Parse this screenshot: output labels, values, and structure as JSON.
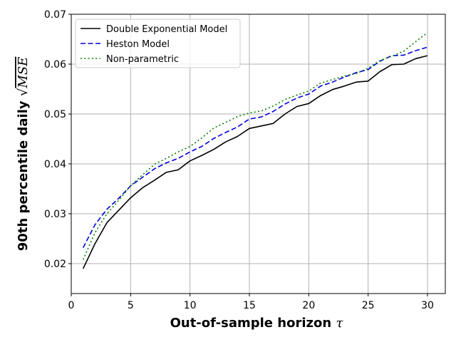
{
  "chart_data": {
    "type": "line",
    "xlabel": "Out-of-sample horizon",
    "xlabel_symbol": "τ",
    "ylabel": "90th percentile daily",
    "ylabel_symbol": "MSE",
    "xlim": [
      0,
      31.5
    ],
    "ylim": [
      0.014,
      0.07
    ],
    "xticks": [
      0,
      5,
      10,
      15,
      20,
      25,
      30
    ],
    "yticks": [
      0.02,
      0.03,
      0.04,
      0.05,
      0.06,
      0.07
    ],
    "ytick_labels": [
      "0.02",
      "0.03",
      "0.04",
      "0.05",
      "0.06",
      "0.07"
    ],
    "grid": true,
    "legend_position": "top-left",
    "x": [
      1,
      2,
      3,
      4,
      5,
      6,
      7,
      8,
      9,
      10,
      11,
      12,
      13,
      14,
      15,
      16,
      17,
      18,
      19,
      20,
      21,
      22,
      23,
      24,
      25,
      26,
      27,
      28,
      29,
      30
    ],
    "series": [
      {
        "name": "Double Exponential Model",
        "color": "#000000",
        "style": "solid",
        "values": [
          0.019,
          0.024,
          0.0282,
          0.0307,
          0.0332,
          0.0352,
          0.0367,
          0.0383,
          0.0388,
          0.0406,
          0.0417,
          0.0429,
          0.0444,
          0.0455,
          0.0471,
          0.0476,
          0.0481,
          0.05,
          0.0515,
          0.0521,
          0.0537,
          0.0549,
          0.0556,
          0.0564,
          0.0566,
          0.0585,
          0.0599,
          0.06,
          0.0611,
          0.0617
        ]
      },
      {
        "name": "Heston Model",
        "color": "#0000dd",
        "style": "dashed",
        "values": [
          0.0232,
          0.0278,
          0.0309,
          0.0331,
          0.0356,
          0.0373,
          0.039,
          0.0402,
          0.0411,
          0.0424,
          0.0435,
          0.0451,
          0.0463,
          0.0474,
          0.049,
          0.0494,
          0.0505,
          0.052,
          0.0532,
          0.054,
          0.0556,
          0.0564,
          0.0574,
          0.0583,
          0.0589,
          0.0606,
          0.0617,
          0.0618,
          0.0627,
          0.0634
        ]
      },
      {
        "name": "Non-parametric",
        "color": "#008000",
        "style": "dotted",
        "values": [
          0.0208,
          0.0262,
          0.03,
          0.0327,
          0.0356,
          0.0378,
          0.0399,
          0.0411,
          0.0424,
          0.0435,
          0.0452,
          0.0472,
          0.0483,
          0.0495,
          0.0502,
          0.0506,
          0.0516,
          0.0529,
          0.0538,
          0.0546,
          0.0562,
          0.0569,
          0.0576,
          0.0581,
          0.0592,
          0.0607,
          0.0616,
          0.0626,
          0.0645,
          0.0663
        ]
      }
    ]
  }
}
